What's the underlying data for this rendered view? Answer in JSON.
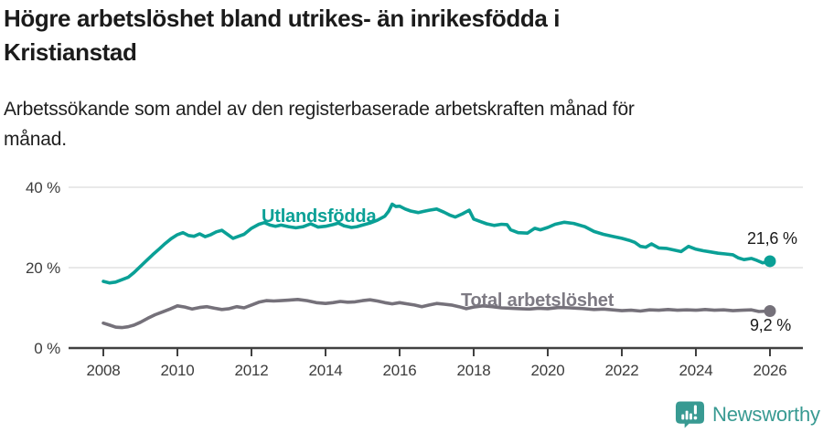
{
  "header": {
    "title": "Högre arbetslöshet bland utrikes- än inrikesfödda i\nKristianstad",
    "subtitle": "Arbetssökande som andel av den registerbaserade arbetskraften månad för\nmånad."
  },
  "chart_data": {
    "type": "line",
    "title": "Högre arbetslöshet bland utrikes- än inrikesfödda i Kristianstad",
    "subtitle": "Arbetssökande som andel av den registerbaserade arbetskraften månad för månad.",
    "x_axis": {
      "unit": "year",
      "ticks": [
        2008,
        2010,
        2012,
        2014,
        2016,
        2018,
        2020,
        2022,
        2024,
        2026
      ],
      "range": [
        2007.1,
        2026.9
      ]
    },
    "y_axis": {
      "unit": "%",
      "ticks": [
        {
          "value": 0,
          "label": "0 %"
        },
        {
          "value": 20,
          "label": "20 %"
        },
        {
          "value": 40,
          "label": "40 %"
        }
      ],
      "range": [
        0,
        44
      ],
      "grid": true
    },
    "legend_position": "inline-labels",
    "series": [
      {
        "name": "Utlandsfödda",
        "color": "#0aa096",
        "label_color": "#0aa096",
        "end_label": "21,6 %",
        "end_value": 21.6,
        "points": [
          [
            2008.0,
            16.6
          ],
          [
            2008.17,
            16.2
          ],
          [
            2008.33,
            16.4
          ],
          [
            2008.5,
            17.0
          ],
          [
            2008.67,
            17.6
          ],
          [
            2008.83,
            18.8
          ],
          [
            2009.0,
            20.3
          ],
          [
            2009.17,
            21.8
          ],
          [
            2009.33,
            23.2
          ],
          [
            2009.5,
            24.6
          ],
          [
            2009.67,
            26.0
          ],
          [
            2009.83,
            27.2
          ],
          [
            2010.0,
            28.2
          ],
          [
            2010.15,
            28.7
          ],
          [
            2010.3,
            28.0
          ],
          [
            2010.45,
            27.8
          ],
          [
            2010.6,
            28.4
          ],
          [
            2010.75,
            27.7
          ],
          [
            2010.9,
            28.2
          ],
          [
            2011.05,
            28.9
          ],
          [
            2011.2,
            29.3
          ],
          [
            2011.35,
            28.3
          ],
          [
            2011.5,
            27.3
          ],
          [
            2011.65,
            27.8
          ],
          [
            2011.8,
            28.3
          ],
          [
            2012.0,
            29.8
          ],
          [
            2012.2,
            30.8
          ],
          [
            2012.35,
            31.2
          ],
          [
            2012.5,
            30.6
          ],
          [
            2012.65,
            30.3
          ],
          [
            2012.8,
            30.6
          ],
          [
            2013.0,
            30.2
          ],
          [
            2013.2,
            29.9
          ],
          [
            2013.4,
            30.2
          ],
          [
            2013.6,
            30.9
          ],
          [
            2013.8,
            30.1
          ],
          [
            2014.0,
            30.3
          ],
          [
            2014.2,
            30.7
          ],
          [
            2014.35,
            31.1
          ],
          [
            2014.5,
            30.4
          ],
          [
            2014.7,
            30.0
          ],
          [
            2014.85,
            30.2
          ],
          [
            2015.0,
            30.6
          ],
          [
            2015.2,
            31.1
          ],
          [
            2015.4,
            31.8
          ],
          [
            2015.6,
            32.8
          ],
          [
            2015.7,
            34.0
          ],
          [
            2015.8,
            35.8
          ],
          [
            2015.9,
            35.2
          ],
          [
            2016.0,
            35.3
          ],
          [
            2016.15,
            34.6
          ],
          [
            2016.3,
            34.1
          ],
          [
            2016.5,
            33.7
          ],
          [
            2016.65,
            34.0
          ],
          [
            2016.8,
            34.3
          ],
          [
            2017.0,
            34.6
          ],
          [
            2017.2,
            33.8
          ],
          [
            2017.35,
            33.1
          ],
          [
            2017.5,
            32.6
          ],
          [
            2017.7,
            33.4
          ],
          [
            2017.88,
            34.3
          ],
          [
            2018.0,
            32.1
          ],
          [
            2018.2,
            31.4
          ],
          [
            2018.35,
            30.9
          ],
          [
            2018.55,
            30.5
          ],
          [
            2018.75,
            30.8
          ],
          [
            2018.9,
            30.7
          ],
          [
            2019.0,
            29.4
          ],
          [
            2019.2,
            28.7
          ],
          [
            2019.45,
            28.6
          ],
          [
            2019.65,
            29.8
          ],
          [
            2019.8,
            29.4
          ],
          [
            2020.0,
            30.0
          ],
          [
            2020.2,
            30.8
          ],
          [
            2020.45,
            31.3
          ],
          [
            2020.7,
            31.0
          ],
          [
            2020.85,
            30.6
          ],
          [
            2021.0,
            30.2
          ],
          [
            2021.25,
            29.0
          ],
          [
            2021.5,
            28.3
          ],
          [
            2021.75,
            27.8
          ],
          [
            2022.0,
            27.3
          ],
          [
            2022.2,
            26.8
          ],
          [
            2022.35,
            26.3
          ],
          [
            2022.5,
            25.3
          ],
          [
            2022.65,
            25.1
          ],
          [
            2022.8,
            25.9
          ],
          [
            2023.0,
            24.9
          ],
          [
            2023.2,
            24.8
          ],
          [
            2023.4,
            24.4
          ],
          [
            2023.6,
            24.0
          ],
          [
            2023.8,
            25.3
          ],
          [
            2024.0,
            24.6
          ],
          [
            2024.2,
            24.2
          ],
          [
            2024.4,
            23.9
          ],
          [
            2024.6,
            23.6
          ],
          [
            2024.8,
            23.4
          ],
          [
            2025.0,
            23.2
          ],
          [
            2025.15,
            22.4
          ],
          [
            2025.3,
            22.0
          ],
          [
            2025.5,
            22.3
          ],
          [
            2025.65,
            21.8
          ],
          [
            2025.8,
            21.2
          ],
          [
            2026.0,
            21.6
          ]
        ]
      },
      {
        "name": "Total arbetslöshet",
        "color": "#75717a",
        "label_color": "#7d7a83",
        "end_label": "9,2 %",
        "end_value": 9.2,
        "points": [
          [
            2008.0,
            6.2
          ],
          [
            2008.17,
            5.7
          ],
          [
            2008.33,
            5.2
          ],
          [
            2008.5,
            5.1
          ],
          [
            2008.67,
            5.3
          ],
          [
            2008.83,
            5.7
          ],
          [
            2009.0,
            6.4
          ],
          [
            2009.2,
            7.4
          ],
          [
            2009.4,
            8.3
          ],
          [
            2009.6,
            9.0
          ],
          [
            2009.8,
            9.7
          ],
          [
            2010.0,
            10.5
          ],
          [
            2010.2,
            10.2
          ],
          [
            2010.4,
            9.7
          ],
          [
            2010.6,
            10.1
          ],
          [
            2010.8,
            10.3
          ],
          [
            2011.0,
            9.9
          ],
          [
            2011.2,
            9.6
          ],
          [
            2011.4,
            9.8
          ],
          [
            2011.6,
            10.3
          ],
          [
            2011.8,
            10.0
          ],
          [
            2012.0,
            10.7
          ],
          [
            2012.2,
            11.4
          ],
          [
            2012.4,
            11.8
          ],
          [
            2012.6,
            11.7
          ],
          [
            2012.8,
            11.8
          ],
          [
            2013.0,
            11.9
          ],
          [
            2013.25,
            12.1
          ],
          [
            2013.5,
            11.8
          ],
          [
            2013.75,
            11.3
          ],
          [
            2014.0,
            11.1
          ],
          [
            2014.2,
            11.3
          ],
          [
            2014.4,
            11.6
          ],
          [
            2014.6,
            11.4
          ],
          [
            2014.8,
            11.5
          ],
          [
            2015.0,
            11.8
          ],
          [
            2015.2,
            12.0
          ],
          [
            2015.4,
            11.7
          ],
          [
            2015.6,
            11.3
          ],
          [
            2015.8,
            11.0
          ],
          [
            2016.0,
            11.3
          ],
          [
            2016.2,
            11.0
          ],
          [
            2016.4,
            10.7
          ],
          [
            2016.6,
            10.3
          ],
          [
            2016.8,
            10.7
          ],
          [
            2017.0,
            11.1
          ],
          [
            2017.2,
            10.9
          ],
          [
            2017.4,
            10.7
          ],
          [
            2017.6,
            10.3
          ],
          [
            2017.8,
            9.8
          ],
          [
            2018.0,
            10.2
          ],
          [
            2018.25,
            10.5
          ],
          [
            2018.5,
            10.3
          ],
          [
            2018.75,
            10.0
          ],
          [
            2019.0,
            9.9
          ],
          [
            2019.25,
            9.8
          ],
          [
            2019.5,
            9.7
          ],
          [
            2019.75,
            9.9
          ],
          [
            2020.0,
            9.8
          ],
          [
            2020.3,
            10.1
          ],
          [
            2020.6,
            10.0
          ],
          [
            2020.8,
            9.9
          ],
          [
            2021.0,
            9.8
          ],
          [
            2021.25,
            9.6
          ],
          [
            2021.5,
            9.7
          ],
          [
            2021.75,
            9.5
          ],
          [
            2022.0,
            9.3
          ],
          [
            2022.25,
            9.4
          ],
          [
            2022.5,
            9.2
          ],
          [
            2022.75,
            9.5
          ],
          [
            2023.0,
            9.4
          ],
          [
            2023.25,
            9.6
          ],
          [
            2023.5,
            9.4
          ],
          [
            2023.75,
            9.5
          ],
          [
            2024.0,
            9.4
          ],
          [
            2024.25,
            9.6
          ],
          [
            2024.5,
            9.4
          ],
          [
            2024.75,
            9.5
          ],
          [
            2025.0,
            9.3
          ],
          [
            2025.25,
            9.4
          ],
          [
            2025.5,
            9.5
          ],
          [
            2025.7,
            9.1
          ],
          [
            2026.0,
            9.2
          ]
        ]
      }
    ],
    "colors": {
      "grid": "#dcdcdc",
      "axis": "#404040",
      "tick_text": "#3c3c3c",
      "value_label_text": "#1a1a1a"
    }
  },
  "footer": {
    "brand": "Newsworthy",
    "brand_color": "#389a92"
  }
}
